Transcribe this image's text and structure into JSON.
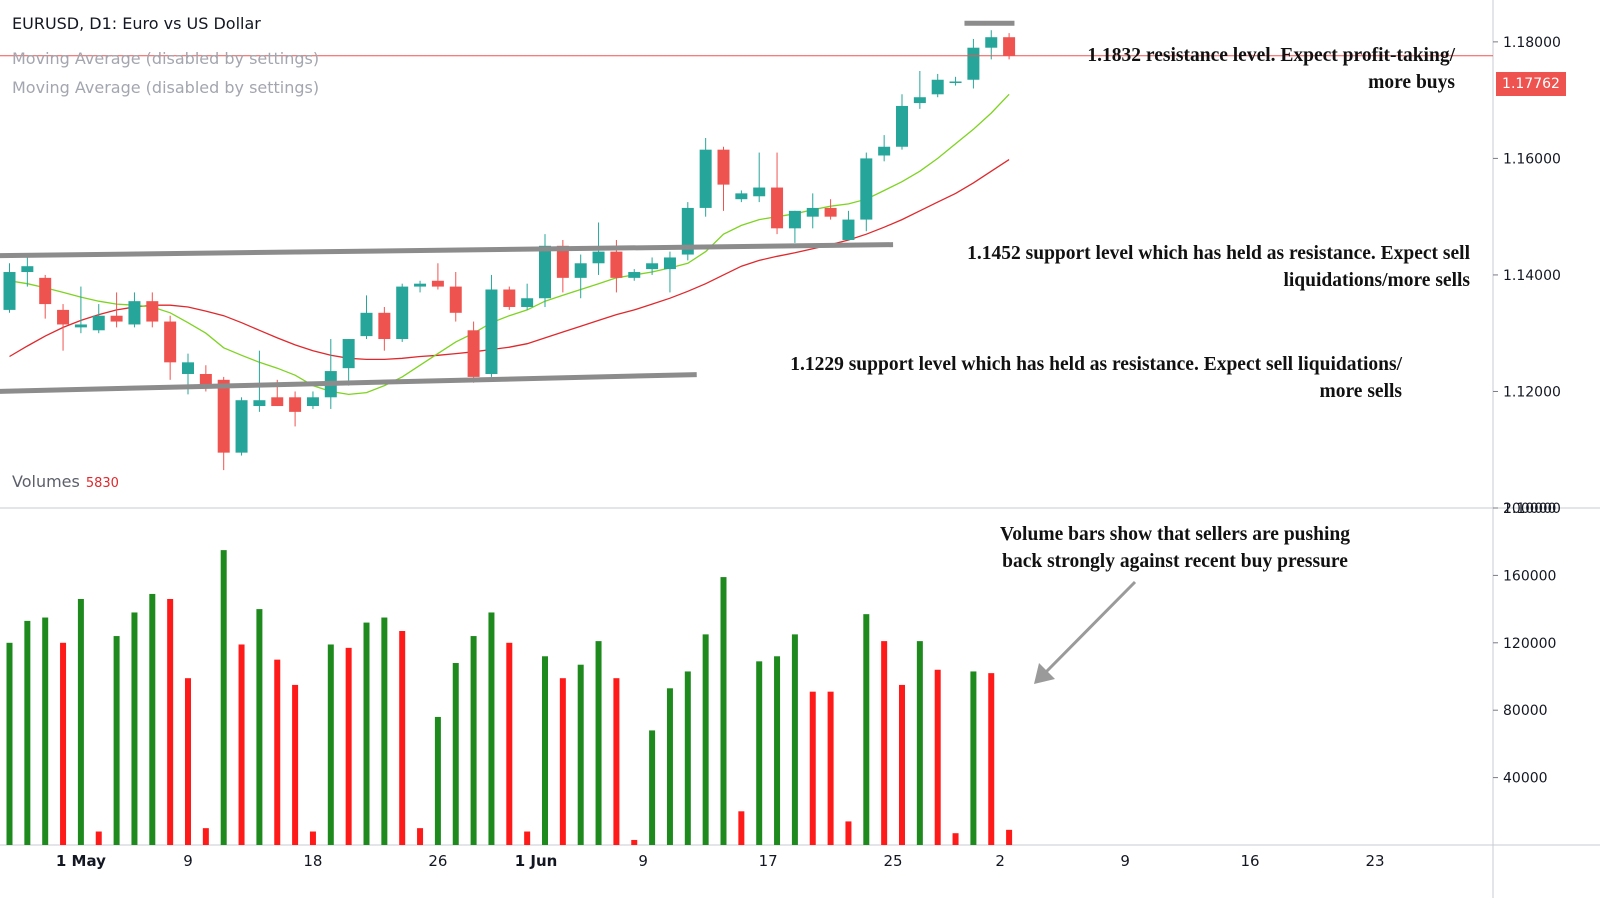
{
  "header": {
    "title": "EURUSD, D1: Euro vs US Dollar",
    "ma_labels": [
      "Moving Average (disabled by settings)",
      "Moving Average (disabled by settings)"
    ],
    "volumes_label": "Volumes",
    "volumes_value": "5830"
  },
  "last_price": "1.17762",
  "annotations": {
    "resistance": [
      "1.1832 resistance level. Expect profit-taking/",
      "more buys"
    ],
    "support_1452": [
      "1.1452 support level which has held as resistance. Expect sell",
      "liquidations/more sells"
    ],
    "support_1229": [
      "1.1229 support level which has held as resistance. Expect sell liquidations/",
      "more sells"
    ],
    "volume_note": [
      "Volume bars show that sellers are pushing",
      "back strongly against recent buy pressure"
    ]
  },
  "colors": {
    "up": "#26a69a",
    "down": "#ef5350",
    "vol_up": "#1e8a1e",
    "vol_down": "#ff1a1a",
    "ma_fast": "#7ed321",
    "ma_slow": "#e0282c",
    "level_line": "#8c8c8c",
    "price_line": "#ef5350"
  },
  "chart_data": {
    "type": "candlestick",
    "price_axis": {
      "ylim": [
        1.1,
        1.1865
      ],
      "ticks": [
        "1.10000",
        "1.12000",
        "1.14000",
        "1.16000",
        "1.18000"
      ]
    },
    "volume_axis": {
      "ylim": [
        0,
        200000
      ],
      "ticks": [
        "40000",
        "80000",
        "120000",
        "160000",
        "200000"
      ]
    },
    "x_ticks": [
      {
        "label": "1 May",
        "bold": true,
        "i": 4
      },
      {
        "label": "9",
        "bold": false,
        "i": 10
      },
      {
        "label": "18",
        "bold": false,
        "i": 17
      },
      {
        "label": "26",
        "bold": false,
        "i": 24
      },
      {
        "label": "1 Jun",
        "bold": true,
        "i": 29.5
      },
      {
        "label": "9",
        "bold": false,
        "i": 35.5
      },
      {
        "label": "17",
        "bold": false,
        "i": 42.5
      },
      {
        "label": "25",
        "bold": false,
        "i": 49.5
      },
      {
        "label": "2",
        "bold": false,
        "i": 55.5
      },
      {
        "label": "9",
        "bold": false,
        "i": 62.5
      },
      {
        "label": "16",
        "bold": false,
        "i": 69.5
      },
      {
        "label": "23",
        "bold": false,
        "i": 76.5
      }
    ],
    "candles": [
      [
        1.134,
        1.142,
        1.1335,
        1.1405
      ],
      [
        1.1405,
        1.143,
        1.138,
        1.1415
      ],
      [
        1.1395,
        1.14,
        1.1325,
        1.135
      ],
      [
        1.134,
        1.135,
        1.127,
        1.1315
      ],
      [
        1.131,
        1.138,
        1.13,
        1.1315
      ],
      [
        1.1305,
        1.135,
        1.13,
        1.133
      ],
      [
        1.133,
        1.137,
        1.131,
        1.132
      ],
      [
        1.1315,
        1.137,
        1.131,
        1.1355
      ],
      [
        1.1355,
        1.137,
        1.131,
        1.132
      ],
      [
        1.132,
        1.133,
        1.122,
        1.125
      ],
      [
        1.123,
        1.1265,
        1.1195,
        1.125
      ],
      [
        1.123,
        1.1245,
        1.12,
        1.1205
      ],
      [
        1.122,
        1.1225,
        1.1065,
        1.1095
      ],
      [
        1.1095,
        1.119,
        1.109,
        1.1185
      ],
      [
        1.1175,
        1.127,
        1.1165,
        1.1185
      ],
      [
        1.119,
        1.122,
        1.1175,
        1.1175
      ],
      [
        1.119,
        1.12,
        1.114,
        1.1165
      ],
      [
        1.1175,
        1.12,
        1.117,
        1.119
      ],
      [
        1.119,
        1.129,
        1.117,
        1.1235
      ],
      [
        1.124,
        1.129,
        1.121,
        1.129
      ],
      [
        1.1295,
        1.1365,
        1.129,
        1.1335
      ],
      [
        1.1335,
        1.1345,
        1.127,
        1.129
      ],
      [
        1.129,
        1.1385,
        1.1285,
        1.138
      ],
      [
        1.138,
        1.139,
        1.137,
        1.1385
      ],
      [
        1.139,
        1.142,
        1.1375,
        1.138
      ],
      [
        1.138,
        1.1405,
        1.132,
        1.1335
      ],
      [
        1.1305,
        1.132,
        1.1215,
        1.1225
      ],
      [
        1.123,
        1.14,
        1.1225,
        1.1375
      ],
      [
        1.1375,
        1.138,
        1.134,
        1.1345
      ],
      [
        1.1345,
        1.1385,
        1.134,
        1.136
      ],
      [
        1.136,
        1.147,
        1.1345,
        1.145
      ],
      [
        1.145,
        1.146,
        1.137,
        1.1395
      ],
      [
        1.1395,
        1.1435,
        1.136,
        1.142
      ],
      [
        1.142,
        1.149,
        1.14,
        1.144
      ],
      [
        1.144,
        1.146,
        1.137,
        1.1395
      ],
      [
        1.1395,
        1.141,
        1.139,
        1.1405
      ],
      [
        1.141,
        1.143,
        1.14,
        1.142
      ],
      [
        1.141,
        1.144,
        1.137,
        1.143
      ],
      [
        1.1435,
        1.1525,
        1.1425,
        1.1515
      ],
      [
        1.1515,
        1.1635,
        1.15,
        1.1615
      ],
      [
        1.1615,
        1.162,
        1.151,
        1.1555
      ],
      [
        1.153,
        1.1545,
        1.1525,
        1.154
      ],
      [
        1.1535,
        1.161,
        1.1525,
        1.155
      ],
      [
        1.155,
        1.161,
        1.147,
        1.148
      ],
      [
        1.148,
        1.151,
        1.1455,
        1.151
      ],
      [
        1.15,
        1.154,
        1.148,
        1.1515
      ],
      [
        1.1515,
        1.153,
        1.1495,
        1.15
      ],
      [
        1.146,
        1.151,
        1.146,
        1.1495
      ],
      [
        1.1495,
        1.161,
        1.1475,
        1.16
      ],
      [
        1.1605,
        1.164,
        1.1595,
        1.162
      ],
      [
        1.162,
        1.171,
        1.1615,
        1.169
      ],
      [
        1.1695,
        1.175,
        1.1685,
        1.1705
      ],
      [
        1.171,
        1.1745,
        1.1705,
        1.1735
      ],
      [
        1.173,
        1.174,
        1.1725,
        1.1732
      ],
      [
        1.1735,
        1.1805,
        1.172,
        1.179
      ],
      [
        1.179,
        1.182,
        1.177,
        1.1808
      ],
      [
        1.1808,
        1.1815,
        1.177,
        1.1776
      ]
    ],
    "volumes": [
      [
        120000,
        "up"
      ],
      [
        133000,
        "up"
      ],
      [
        135000,
        "up"
      ],
      [
        120000,
        "down"
      ],
      [
        146000,
        "up"
      ],
      [
        8000,
        "down"
      ],
      [
        124000,
        "up"
      ],
      [
        138000,
        "up"
      ],
      [
        149000,
        "up"
      ],
      [
        146000,
        "down"
      ],
      [
        99000,
        "down"
      ],
      [
        10000,
        "down"
      ],
      [
        175000,
        "up"
      ],
      [
        119000,
        "down"
      ],
      [
        140000,
        "up"
      ],
      [
        110000,
        "down"
      ],
      [
        95000,
        "down"
      ],
      [
        8000,
        "down"
      ],
      [
        119000,
        "up"
      ],
      [
        117000,
        "down"
      ],
      [
        132000,
        "up"
      ],
      [
        135000,
        "up"
      ],
      [
        127000,
        "down"
      ],
      [
        10000,
        "down"
      ],
      [
        76000,
        "up"
      ],
      [
        108000,
        "up"
      ],
      [
        124000,
        "up"
      ],
      [
        138000,
        "up"
      ],
      [
        120000,
        "down"
      ],
      [
        8000,
        "down"
      ],
      [
        112000,
        "up"
      ],
      [
        99000,
        "down"
      ],
      [
        107000,
        "up"
      ],
      [
        121000,
        "up"
      ],
      [
        99000,
        "down"
      ],
      [
        3000,
        "down"
      ],
      [
        68000,
        "up"
      ],
      [
        93000,
        "up"
      ],
      [
        103000,
        "up"
      ],
      [
        125000,
        "up"
      ],
      [
        159000,
        "up"
      ],
      [
        20000,
        "down"
      ],
      [
        109000,
        "up"
      ],
      [
        112000,
        "up"
      ],
      [
        125000,
        "up"
      ],
      [
        91000,
        "down"
      ],
      [
        91000,
        "down"
      ],
      [
        14000,
        "down"
      ],
      [
        137000,
        "up"
      ],
      [
        121000,
        "down"
      ],
      [
        95000,
        "down"
      ],
      [
        121000,
        "up"
      ],
      [
        104000,
        "down"
      ],
      [
        7000,
        "down"
      ],
      [
        103000,
        "up"
      ],
      [
        102000,
        "down"
      ],
      [
        9000,
        "down"
      ]
    ],
    "ma_fast": [
      1.139,
      1.1385,
      1.1378,
      1.137,
      1.1362,
      1.1355,
      1.135,
      1.1348,
      1.1345,
      1.1335,
      1.1318,
      1.13,
      1.1275,
      1.1262,
      1.125,
      1.124,
      1.1228,
      1.121,
      1.12,
      1.1195,
      1.1198,
      1.121,
      1.1225,
      1.1245,
      1.1265,
      1.1285,
      1.13,
      1.1318,
      1.133,
      1.134,
      1.1355,
      1.1365,
      1.1375,
      1.1385,
      1.1395,
      1.14,
      1.1405,
      1.1412,
      1.142,
      1.144,
      1.147,
      1.1485,
      1.1495,
      1.15,
      1.1505,
      1.1512,
      1.1518,
      1.1522,
      1.153,
      1.1545,
      1.156,
      1.1578,
      1.16,
      1.1625,
      1.165,
      1.1678,
      1.171
    ],
    "ma_slow": [
      1.126,
      1.1278,
      1.1295,
      1.131,
      1.1322,
      1.1332,
      1.134,
      1.1345,
      1.1348,
      1.1348,
      1.1345,
      1.1338,
      1.133,
      1.1318,
      1.1305,
      1.1292,
      1.128,
      1.127,
      1.1262,
      1.1257,
      1.1255,
      1.1255,
      1.1257,
      1.126,
      1.1262,
      1.1265,
      1.1268,
      1.1272,
      1.1276,
      1.1282,
      1.1292,
      1.1302,
      1.1312,
      1.1322,
      1.1332,
      1.134,
      1.135,
      1.136,
      1.1372,
      1.1385,
      1.14,
      1.1415,
      1.1425,
      1.1432,
      1.1438,
      1.1445,
      1.1452,
      1.146,
      1.147,
      1.1482,
      1.1495,
      1.151,
      1.1525,
      1.154,
      1.1558,
      1.1578,
      1.1598
    ],
    "levels": [
      {
        "price": 1.1832,
        "from_i": 53.5,
        "to_i": 56.3
      },
      {
        "price_start": 1.1433,
        "price_end": 1.1452,
        "from_i": -0.8,
        "to_i": 49.5
      },
      {
        "price_start": 1.12,
        "price_end": 1.1229,
        "from_i": -0.8,
        "to_i": 38.5
      }
    ]
  }
}
